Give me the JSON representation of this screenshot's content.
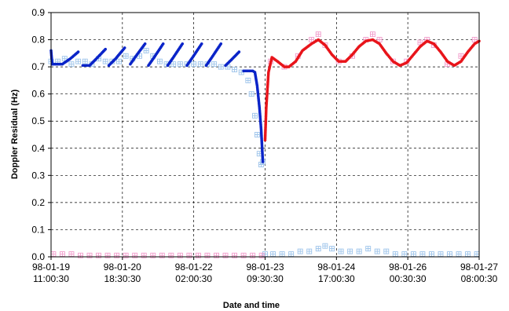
{
  "chart_data": {
    "type": "scatter",
    "title": "",
    "xlabel": "Date and time",
    "ylabel": "Doppler Residual (Hz)",
    "ylim": [
      0,
      0.9
    ],
    "yticks": [
      "0.0",
      "0.1",
      "0.2",
      "0.3",
      "0.4",
      "0.5",
      "0.6",
      "0.7",
      "0.8",
      "0.9"
    ],
    "xlim": [
      "1998-01-19 11:00:30",
      "1998-01-27 08:00:30"
    ],
    "xticks": [
      {
        "date": "98-01-19",
        "time": "11:00:30",
        "t": "1998-01-19 11:00:30"
      },
      {
        "date": "98-01-20",
        "time": "18:30:30",
        "t": "1998-01-20 18:30:30"
      },
      {
        "date": "98-01-22",
        "time": "02:00:30",
        "t": "1998-01-22 02:00:30"
      },
      {
        "date": "98-01-23",
        "time": "09:30:30",
        "t": "1998-01-23 09:30:30"
      },
      {
        "date": "98-01-24",
        "time": "17:00:30",
        "t": "1998-01-24 17:00:30"
      },
      {
        "date": "98-01-26",
        "time": "00:30:30",
        "t": "1998-01-26 00:30:30"
      },
      {
        "date": "98-01-27",
        "time": "08:00:30",
        "t": "1998-01-27 08:00:30"
      }
    ],
    "grid": true,
    "legend": "none",
    "series": [
      {
        "color": "#9cc3ea",
        "marker": "hollow-square-cross",
        "points": [
          [
            "1998-01-19 11:00:30",
            0.72
          ],
          [
            "1998-01-19 14:00:30",
            0.72
          ],
          [
            "1998-01-19 17:00:30",
            0.73
          ],
          [
            "1998-01-19 20:00:30",
            0.71
          ],
          [
            "1998-01-19 23:00:30",
            0.72
          ],
          [
            "1998-01-20 02:00:30",
            0.72
          ],
          [
            "1998-01-20 05:00:30",
            0.71
          ],
          [
            "1998-01-20 08:00:30",
            0.73
          ],
          [
            "1998-01-20 11:00:30",
            0.72
          ],
          [
            "1998-01-20 14:00:30",
            0.72
          ],
          [
            "1998-01-20 17:00:30",
            0.72
          ],
          [
            "1998-01-20 20:00:30",
            0.74
          ],
          [
            "1998-01-20 23:00:30",
            0.73
          ],
          [
            "1998-01-21 02:00:30",
            0.74
          ],
          [
            "1998-01-21 05:00:30",
            0.76
          ],
          [
            "1998-01-21 08:00:30",
            0.74
          ],
          [
            "1998-01-21 11:00:30",
            0.72
          ],
          [
            "1998-01-21 14:00:30",
            0.71
          ],
          [
            "1998-01-21 17:00:30",
            0.71
          ],
          [
            "1998-01-21 20:00:30",
            0.71
          ],
          [
            "1998-01-21 23:00:30",
            0.71
          ],
          [
            "1998-01-22 02:00:30",
            0.71
          ],
          [
            "1998-01-22 05:00:30",
            0.71
          ],
          [
            "1998-01-22 08:00:30",
            0.71
          ],
          [
            "1998-01-22 11:00:30",
            0.71
          ],
          [
            "1998-01-22 14:00:30",
            0.7
          ],
          [
            "1998-01-22 17:00:30",
            0.7
          ],
          [
            "1998-01-22 20:00:30",
            0.69
          ],
          [
            "1998-01-22 23:00:30",
            0.68
          ],
          [
            "1998-01-23 02:00:30",
            0.65
          ],
          [
            "1998-01-23 03:30:30",
            0.6
          ],
          [
            "1998-01-23 05:00:30",
            0.52
          ],
          [
            "1998-01-23 06:00:30",
            0.45
          ],
          [
            "1998-01-23 07:00:30",
            0.38
          ],
          [
            "1998-01-23 07:45:30",
            0.34
          ],
          [
            "1998-01-23 08:30:30",
            0.35
          ],
          [
            "1998-01-23 09:30:30",
            0.01
          ],
          [
            "1998-01-23 13:00:30",
            0.01
          ],
          [
            "1998-01-23 17:00:30",
            0.01
          ],
          [
            "1998-01-23 21:00:30",
            0.01
          ],
          [
            "1998-01-24 01:00:30",
            0.02
          ],
          [
            "1998-01-24 05:00:30",
            0.02
          ],
          [
            "1998-01-24 09:00:30",
            0.03
          ],
          [
            "1998-01-24 12:00:30",
            0.04
          ],
          [
            "1998-01-24 15:00:30",
            0.03
          ],
          [
            "1998-01-24 19:00:30",
            0.02
          ],
          [
            "1998-01-24 23:00:30",
            0.02
          ],
          [
            "1998-01-25 03:00:30",
            0.02
          ],
          [
            "1998-01-25 07:00:30",
            0.03
          ],
          [
            "1998-01-25 11:00:30",
            0.02
          ],
          [
            "1998-01-25 15:00:30",
            0.02
          ],
          [
            "1998-01-25 19:00:30",
            0.01
          ],
          [
            "1998-01-25 23:00:30",
            0.01
          ],
          [
            "1998-01-26 03:00:30",
            0.01
          ],
          [
            "1998-01-26 07:00:30",
            0.01
          ],
          [
            "1998-01-26 11:00:30",
            0.01
          ],
          [
            "1998-01-26 15:00:30",
            0.01
          ],
          [
            "1998-01-26 19:00:30",
            0.01
          ],
          [
            "1998-01-26 23:00:30",
            0.01
          ],
          [
            "1998-01-27 03:00:30",
            0.01
          ],
          [
            "1998-01-27 07:00:30",
            0.01
          ]
        ]
      },
      {
        "color": "#f29bcb",
        "marker": "hollow-square-cross",
        "points": [
          [
            "1998-01-19 12:00:30",
            0.01
          ],
          [
            "1998-01-19 16:00:30",
            0.01
          ],
          [
            "1998-01-19 20:00:30",
            0.01
          ],
          [
            "1998-01-20 00:00:30",
            0.005
          ],
          [
            "1998-01-20 04:00:30",
            0.005
          ],
          [
            "1998-01-20 08:00:30",
            0.005
          ],
          [
            "1998-01-20 12:00:30",
            0.005
          ],
          [
            "1998-01-20 16:00:30",
            0.005
          ],
          [
            "1998-01-20 20:00:30",
            0.005
          ],
          [
            "1998-01-21 00:00:30",
            0.005
          ],
          [
            "1998-01-21 04:00:30",
            0.005
          ],
          [
            "1998-01-21 08:00:30",
            0.005
          ],
          [
            "1998-01-21 12:00:30",
            0.005
          ],
          [
            "1998-01-21 16:00:30",
            0.005
          ],
          [
            "1998-01-21 20:00:30",
            0.005
          ],
          [
            "1998-01-22 00:00:30",
            0.005
          ],
          [
            "1998-01-22 04:00:30",
            0.005
          ],
          [
            "1998-01-22 08:00:30",
            0.005
          ],
          [
            "1998-01-22 12:00:30",
            0.005
          ],
          [
            "1998-01-22 16:00:30",
            0.005
          ],
          [
            "1998-01-22 20:00:30",
            0.005
          ],
          [
            "1998-01-23 00:00:30",
            0.005
          ],
          [
            "1998-01-23 04:00:30",
            0.005
          ],
          [
            "1998-01-23 08:00:30",
            0.005
          ],
          [
            "1998-01-23 12:00:30",
            0.72
          ],
          [
            "1998-01-23 18:00:30",
            0.7
          ],
          [
            "1998-01-24 00:00:30",
            0.74
          ],
          [
            "1998-01-24 06:00:30",
            0.8
          ],
          [
            "1998-01-24 09:00:30",
            0.82
          ],
          [
            "1998-01-24 12:00:30",
            0.78
          ],
          [
            "1998-01-24 18:00:30",
            0.72
          ],
          [
            "1998-01-25 00:00:30",
            0.74
          ],
          [
            "1998-01-25 06:00:30",
            0.8
          ],
          [
            "1998-01-25 09:00:30",
            0.82
          ],
          [
            "1998-01-25 12:00:30",
            0.8
          ],
          [
            "1998-01-25 18:00:30",
            0.72
          ],
          [
            "1998-01-26 00:00:30",
            0.72
          ],
          [
            "1998-01-26 06:00:30",
            0.79
          ],
          [
            "1998-01-26 09:00:30",
            0.8
          ],
          [
            "1998-01-26 12:00:30",
            0.78
          ],
          [
            "1998-01-26 18:00:30",
            0.71
          ],
          [
            "1998-01-27 00:00:30",
            0.74
          ],
          [
            "1998-01-27 06:00:30",
            0.8
          ]
        ]
      },
      {
        "color": "#0a24c8",
        "marker": "dot",
        "segments": [
          [
            [
              "1998-01-19 11:00:30",
              0.76
            ],
            [
              "1998-01-19 11:30:30",
              0.71
            ]
          ],
          [
            [
              "1998-01-19 11:30:30",
              0.71
            ],
            [
              "1998-01-19 16:00:30",
              0.71
            ],
            [
              "1998-01-19 19:30:30",
              0.73
            ],
            [
              "1998-01-19 23:00:30",
              0.755
            ]
          ],
          [
            [
              "1998-01-20 01:00:30",
              0.705
            ],
            [
              "1998-01-20 04:00:30",
              0.705
            ],
            [
              "1998-01-20 07:00:30",
              0.73
            ],
            [
              "1998-01-20 11:00:30",
              0.765
            ]
          ],
          [
            [
              "1998-01-20 12:30:30",
              0.705
            ],
            [
              "1998-01-20 15:30:30",
              0.73
            ],
            [
              "1998-01-20 19:30:30",
              0.77
            ]
          ],
          [
            [
              "1998-01-20 22:00:30",
              0.71
            ],
            [
              "1998-01-21 00:30:30",
              0.74
            ],
            [
              "1998-01-21 04:30:30",
              0.785
            ]
          ],
          [
            [
              "1998-01-21 06:00:30",
              0.705
            ],
            [
              "1998-01-21 08:30:30",
              0.735
            ],
            [
              "1998-01-21 12:30:30",
              0.785
            ]
          ],
          [
            [
              "1998-01-21 14:30:30",
              0.705
            ],
            [
              "1998-01-21 17:00:30",
              0.735
            ],
            [
              "1998-01-21 21:00:30",
              0.785
            ]
          ],
          [
            [
              "1998-01-21 23:00:30",
              0.705
            ],
            [
              "1998-01-22 01:30:30",
              0.735
            ],
            [
              "1998-01-22 05:30:30",
              0.785
            ]
          ],
          [
            [
              "1998-01-22 07:30:30",
              0.705
            ],
            [
              "1998-01-22 10:00:30",
              0.735
            ],
            [
              "1998-01-22 14:00:30",
              0.785
            ]
          ],
          [
            [
              "1998-01-22 16:00:30",
              0.705
            ],
            [
              "1998-01-22 18:30:30",
              0.725
            ],
            [
              "1998-01-22 22:00:30",
              0.755
            ]
          ],
          [
            [
              "1998-01-23 00:00:30",
              0.685
            ],
            [
              "1998-01-23 04:00:30",
              0.685
            ],
            [
              "1998-01-23 05:00:30",
              0.68
            ],
            [
              "1998-01-23 06:00:30",
              0.63
            ],
            [
              "1998-01-23 07:00:30",
              0.55
            ],
            [
              "1998-01-23 07:45:30",
              0.47
            ],
            [
              "1998-01-23 08:30:30",
              0.35
            ]
          ]
        ]
      },
      {
        "color": "#e8141a",
        "marker": "dot",
        "segments": [
          [
            [
              "1998-01-23 09:30:30",
              0.43
            ],
            [
              "1998-01-23 10:00:30",
              0.55
            ],
            [
              "1998-01-23 11:00:30",
              0.68
            ],
            [
              "1998-01-23 12:30:30",
              0.735
            ],
            [
              "1998-01-23 15:00:30",
              0.72
            ],
            [
              "1998-01-23 18:00:30",
              0.7
            ],
            [
              "1998-01-23 20:00:30",
              0.7
            ],
            [
              "1998-01-23 23:00:30",
              0.72
            ],
            [
              "1998-01-24 02:00:30",
              0.76
            ],
            [
              "1998-01-24 06:00:30",
              0.785
            ],
            [
              "1998-01-24 09:00:30",
              0.8
            ],
            [
              "1998-01-24 12:00:30",
              0.78
            ],
            [
              "1998-01-24 15:00:30",
              0.745
            ],
            [
              "1998-01-24 18:00:30",
              0.72
            ],
            [
              "1998-01-24 21:00:30",
              0.72
            ],
            [
              "1998-01-25 00:00:30",
              0.745
            ],
            [
              "1998-01-25 03:00:30",
              0.775
            ],
            [
              "1998-01-25 06:00:30",
              0.795
            ],
            [
              "1998-01-25 09:00:30",
              0.8
            ],
            [
              "1998-01-25 12:00:30",
              0.785
            ],
            [
              "1998-01-25 15:00:30",
              0.75
            ],
            [
              "1998-01-25 18:00:30",
              0.72
            ],
            [
              "1998-01-25 21:00:30",
              0.705
            ],
            [
              "1998-01-26 00:00:30",
              0.715
            ],
            [
              "1998-01-26 03:00:30",
              0.745
            ],
            [
              "1998-01-26 06:00:30",
              0.775
            ],
            [
              "1998-01-26 09:00:30",
              0.795
            ],
            [
              "1998-01-26 12:00:30",
              0.785
            ],
            [
              "1998-01-26 15:00:30",
              0.755
            ],
            [
              "1998-01-26 18:00:30",
              0.72
            ],
            [
              "1998-01-26 21:00:30",
              0.705
            ],
            [
              "1998-01-27 00:00:30",
              0.72
            ],
            [
              "1998-01-27 03:00:30",
              0.755
            ],
            [
              "1998-01-27 06:00:30",
              0.785
            ],
            [
              "1998-01-27 08:00:30",
              0.795
            ]
          ]
        ]
      }
    ]
  }
}
